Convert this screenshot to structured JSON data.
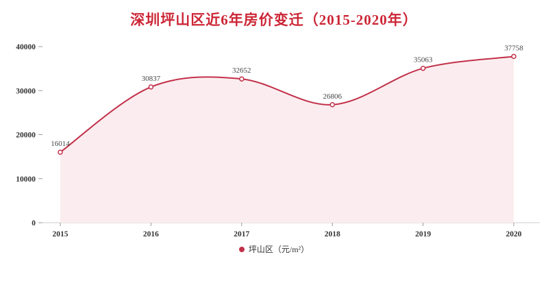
{
  "colors": {
    "title": "#cc2636",
    "line": "#c2304a",
    "fill": "#fbedef",
    "axis_line": "#cccccc",
    "tick": "#999999",
    "value_label": "#444444",
    "axis_text": "#333333"
  },
  "chart_data": {
    "type": "area",
    "title": "深圳坪山区近6年房价变迁（2015-2020年）",
    "categories": [
      "2015",
      "2016",
      "2017",
      "2018",
      "2019",
      "2020"
    ],
    "series": [
      {
        "name": "坪山区（元/m²）",
        "values": [
          16014,
          30837,
          32652,
          26806,
          35063,
          37758
        ]
      }
    ],
    "xlabel": "",
    "ylabel": "",
    "ylim": [
      0,
      40000
    ],
    "yticks": [
      0,
      10000,
      20000,
      30000,
      40000
    ],
    "grid": false,
    "smooth": true,
    "legend_position": "bottom"
  }
}
